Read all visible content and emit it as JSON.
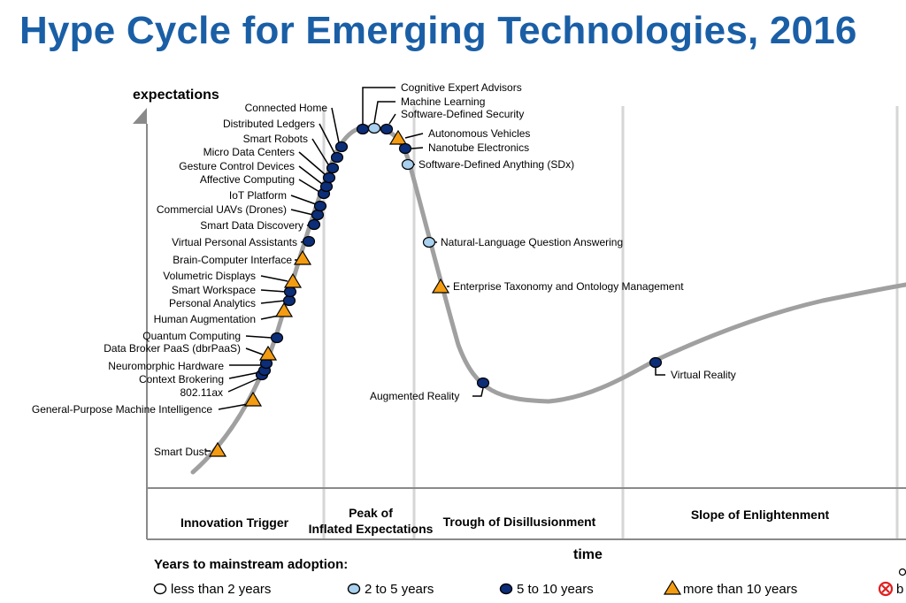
{
  "title": "Hype Cycle for Emerging Technologies, 2016",
  "axes": {
    "y_label": "expectations",
    "x_label": "time"
  },
  "phases": [
    {
      "id": "innovation-trigger",
      "lines": [
        "Innovation Trigger"
      ]
    },
    {
      "id": "peak",
      "lines": [
        "Peak of",
        "Inflated Expectations"
      ]
    },
    {
      "id": "trough",
      "lines": [
        "Trough of Disillusionment"
      ]
    },
    {
      "id": "slope",
      "lines": [
        "Slope of Enlightenment"
      ]
    }
  ],
  "legend": {
    "title": "Years to mainstream adoption:",
    "items": [
      {
        "marker": "white-circle",
        "label": "less than 2 years"
      },
      {
        "marker": "light-blue-circle",
        "label": "2 to 5 years"
      },
      {
        "marker": "dark-blue-circle",
        "label": "5 to 10 years"
      },
      {
        "marker": "orange-triangle",
        "label": "more than 10 years"
      },
      {
        "marker": "red-x-circle",
        "label": "b"
      }
    ]
  },
  "colors": {
    "title": "#1a5fa6",
    "curve": "#a0a0a0",
    "dark_blue": "#0c2d77",
    "light_blue": "#a9d0ee",
    "orange": "#f39c12",
    "red": "#e01f1f"
  },
  "technologies": [
    {
      "name": "Smart Dust",
      "adoption": "more than 10 years"
    },
    {
      "name": "General-Purpose Machine Intelligence",
      "adoption": "more than 10 years"
    },
    {
      "name": "802.11ax",
      "adoption": "5 to 10 years"
    },
    {
      "name": "Context Brokering",
      "adoption": "5 to 10 years"
    },
    {
      "name": "Neuromorphic Hardware",
      "adoption": "5 to 10 years"
    },
    {
      "name": "Data Broker PaaS (dbrPaaS)",
      "adoption": "more than 10 years"
    },
    {
      "name": "Quantum Computing",
      "adoption": "5 to 10 years"
    },
    {
      "name": "Human Augmentation",
      "adoption": "more than 10 years"
    },
    {
      "name": "Personal Analytics",
      "adoption": "5 to 10 years"
    },
    {
      "name": "Smart Workspace",
      "adoption": "5 to 10 years"
    },
    {
      "name": "Volumetric Displays",
      "adoption": "more than 10 years"
    },
    {
      "name": "Brain-Computer Interface",
      "adoption": "more than 10 years"
    },
    {
      "name": "Virtual Personal Assistants",
      "adoption": "5 to 10 years"
    },
    {
      "name": "Smart Data Discovery",
      "adoption": "5 to 10 years"
    },
    {
      "name": "Commercial UAVs (Drones)",
      "adoption": "5 to 10 years"
    },
    {
      "name": "IoT Platform",
      "adoption": "5 to 10 years"
    },
    {
      "name": "Affective Computing",
      "adoption": "5 to 10 years"
    },
    {
      "name": "Gesture Control Devices",
      "adoption": "5 to 10 years"
    },
    {
      "name": "Micro Data Centers",
      "adoption": "5 to 10 years"
    },
    {
      "name": "Smart Robots",
      "adoption": "5 to 10 years"
    },
    {
      "name": "Distributed Ledgers",
      "adoption": "5 to 10 years"
    },
    {
      "name": "Connected Home",
      "adoption": "5 to 10 years"
    },
    {
      "name": "Cognitive Expert Advisors",
      "adoption": "5 to 10 years"
    },
    {
      "name": "Machine Learning",
      "adoption": "2 to 5 years"
    },
    {
      "name": "Software-Defined Security",
      "adoption": "5 to 10 years"
    },
    {
      "name": "Autonomous Vehicles",
      "adoption": "more than 10 years"
    },
    {
      "name": "Nanotube Electronics",
      "adoption": "5 to 10 years"
    },
    {
      "name": "Software-Defined Anything (SDx)",
      "adoption": "2 to 5 years"
    },
    {
      "name": "Natural-Language Question Answering",
      "adoption": "2 to 5 years"
    },
    {
      "name": "Enterprise Taxonomy and Ontology Management",
      "adoption": "more than 10 years"
    },
    {
      "name": "Augmented Reality",
      "adoption": "5 to 10 years"
    },
    {
      "name": "Virtual Reality",
      "adoption": "5 to 10 years"
    }
  ]
}
